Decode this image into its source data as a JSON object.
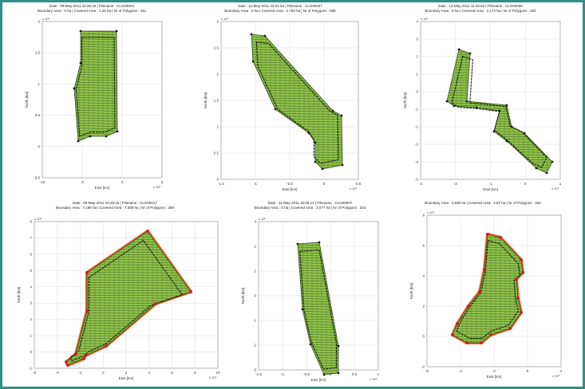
{
  "panels": [
    {
      "title_line1": "Date : 09-May-2011 10:26:19 | Filename : CLG00004",
      "title_line2": "Boundary Area : 0 ha | Covered Area : 1.25 ha | Nr of Polygons : 411",
      "xlabel": "East [km]",
      "ylabel": "North [km]",
      "scale": "x 10³",
      "xticks": [
        "-10",
        "-5",
        "0",
        "5"
      ],
      "yticks": [
        "-0.5",
        "0",
        "0.5",
        "1",
        "1.5",
        "2"
      ]
    },
    {
      "title_line1": "Date : 11-May-2011 23:01:54 | Filename : CLG00007",
      "title_line2": "Boundary Area : 0 ha | Covered Area : 2.763 ha | Nr of Polygons : 586",
      "xlabel": "East [km]",
      "ylabel": "North [km]",
      "scale": "x 10³",
      "xticks": [
        "-1.5",
        "-1",
        "-0.5",
        "0",
        "0.5"
      ],
      "yticks": [
        "0",
        "0.5",
        "1",
        "1.5",
        "2",
        "2.5",
        "3"
      ]
    },
    {
      "title_line1": "Date : 12-May-2011 11:26:52 | Filename : CLG00006",
      "title_line2": "Boundary Area : 0 ha | Covered Area : 2.174 ha | Nr of Polygons : 402",
      "xlabel": "East [km]",
      "ylabel": "North [km]",
      "scale": "x 10³",
      "xticks": [
        "-3",
        "-2",
        "-1",
        "0",
        "1"
      ],
      "yticks": [
        "-5",
        "-4",
        "-3",
        "-2",
        "-1",
        "0",
        "1",
        "2",
        "3",
        "4"
      ]
    },
    {
      "title_line1": "Date : 09-May-2011 10:26:15 | Filename : CLG00017",
      "title_line2": "Boundary Area : 7.186 ha | Covered Area : 7.059 ha | Nr of Polygons : 389",
      "xlabel": "East [km]",
      "ylabel": "North [km]",
      "scale": "x 10³",
      "xticks": [
        "-6",
        "-4",
        "-2",
        "0",
        "2",
        "4",
        "6",
        "8",
        "10"
      ],
      "yticks": [
        "-1",
        "0",
        "1",
        "2",
        "3",
        "4",
        "5",
        "6",
        "7",
        "8"
      ]
    },
    {
      "title_line1": "Date : 11-May-2011 16:06:13 | Filename : CLG00007",
      "title_line2": "Boundary Area : 0 ha | Covered Area : 2.077 ha | Nr of Polygons : 203",
      "xlabel": "East [km]",
      "ylabel": "North [km]",
      "scale": "x 10³",
      "xticks": [
        "-1.5",
        "-1",
        "-0.5",
        "0",
        "0.5",
        "1"
      ],
      "yticks": [
        "-3",
        "-2",
        "-1",
        "0",
        "1",
        "2",
        "3"
      ]
    },
    {
      "title_line1": "",
      "title_line2": "Boundary Area : 2.839 ha | Covered Area : 2.87 ha | Nr of Polygons : 462",
      "xlabel": "East [km]",
      "ylabel": "North [km]",
      "scale": "x 10³",
      "xticks": [
        "-6",
        "-4",
        "-2",
        "0",
        "2"
      ],
      "yticks": [
        "-2",
        "0",
        "2",
        "4",
        "6",
        "8"
      ]
    }
  ],
  "colors": {
    "frame": "#2f8f88",
    "field_fill": "#8ec24a",
    "grid_lines": "#3d5a1e",
    "path": "#1a1a1a",
    "boundary": "#e8642c",
    "boundary_point": "#d42020"
  }
}
